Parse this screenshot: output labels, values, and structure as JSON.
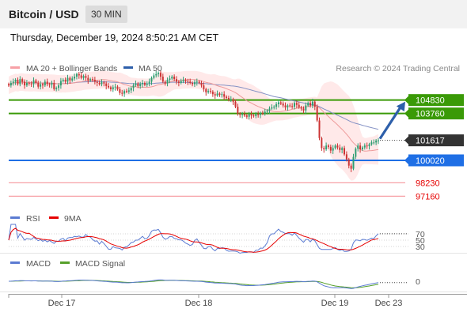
{
  "header": {
    "title": "Bitcoin / USD",
    "timeframe": "30 MIN"
  },
  "date_line": "Thursday, December 19, 2024 8:50:21 AM CET",
  "price_legend": {
    "bollinger": "MA 20 + Bollinger Bands",
    "ma50": "MA 50"
  },
  "credit": "Research © 2024 Trading Central",
  "rsi_legend": {
    "rsi": "RSI",
    "ma": "9MA"
  },
  "macd_legend": {
    "macd": "MACD",
    "signal": "MACD Signal"
  },
  "colors": {
    "green": "#3a9a07",
    "blue": "#1f6fe5",
    "pink": "#f7a0a6",
    "red": "#e60000",
    "ma50": "#8491c4",
    "ma20": "#ee9a9a",
    "band": "#ffe1e1",
    "up": "#2e9e72",
    "down": "#cc3434",
    "dark_label": "#333333",
    "arrow": "#2d5faa",
    "macd": "#5b7bd2",
    "signal": "#56a02a"
  },
  "chart_data": [
    {
      "type": "line",
      "title": "Bitcoin / USD",
      "x_ticks": [
        "Dec 17",
        "Dec 18",
        "Dec 19",
        "Dec 23"
      ],
      "ylim": [
        96300,
        106700
      ],
      "current_price": 101617,
      "levels": [
        {
          "value": 104830,
          "label": "104830",
          "style": "resistance"
        },
        {
          "value": 103760,
          "label": "103760",
          "style": "resistance"
        },
        {
          "value": 100020,
          "label": "100020",
          "style": "pivot"
        },
        {
          "value": 98230,
          "label": "98230",
          "style": "support"
        },
        {
          "value": 97160,
          "label": "97160",
          "style": "support"
        }
      ],
      "forecast": {
        "from": 101617,
        "to": 104830
      },
      "candles_close": [
        106000,
        106200,
        106300,
        106450,
        106100,
        106500,
        106300,
        106000,
        106200,
        106150,
        106100,
        106400,
        106200,
        105900,
        106100,
        106000,
        106300,
        106100,
        106050,
        106200,
        105700,
        105800,
        106000,
        106350,
        106450,
        106300,
        106600,
        106400,
        106550,
        106700,
        106900,
        106800,
        106600,
        106750,
        106600,
        106400,
        106500,
        106450,
        106300,
        106200,
        106100,
        106250,
        106150,
        105950,
        105850,
        105700,
        105850,
        105900,
        105700,
        105400,
        105350,
        105550,
        105500,
        105600,
        105800,
        106000,
        106150,
        105950,
        106100,
        106200,
        106050,
        106150,
        106300,
        106600,
        106800,
        106900,
        107000,
        106700,
        106300,
        106150,
        106450,
        106550,
        106700,
        106500,
        106300,
        106200,
        106350,
        106450,
        106350,
        106300,
        106200,
        106100,
        106250,
        106300,
        106200,
        106000,
        105700,
        105450,
        105550,
        105500,
        105300,
        105200,
        105350,
        105250,
        105300,
        105100,
        105000,
        104900,
        104900,
        104700,
        104300,
        103750,
        103650,
        103700,
        103600,
        103500,
        103700,
        103600,
        103550,
        103700,
        103650,
        103800,
        103750,
        103900,
        104000,
        104150,
        104250,
        104300,
        104500,
        104650,
        104550,
        104400,
        104250,
        104400,
        104350,
        104300,
        104600,
        104450,
        104250,
        104150,
        104000,
        104400,
        104600,
        104400,
        104700,
        104300,
        103200,
        101800,
        101000,
        100900,
        101200,
        101100,
        100800,
        101000,
        101200,
        101050,
        100850,
        101000,
        100500,
        100100,
        99600,
        99350,
        100300,
        100950,
        101200,
        100900,
        101050,
        101200,
        101150,
        101300,
        101450,
        101450,
        101600,
        101617
      ]
    },
    {
      "type": "line",
      "title": "RSI",
      "yticks": [
        30,
        50,
        70
      ],
      "series": [
        {
          "name": "RSI"
        },
        {
          "name": "9MA"
        }
      ]
    },
    {
      "type": "line",
      "title": "MACD",
      "yticks": [
        0
      ],
      "series": [
        {
          "name": "MACD"
        },
        {
          "name": "MACD Signal"
        }
      ]
    }
  ]
}
